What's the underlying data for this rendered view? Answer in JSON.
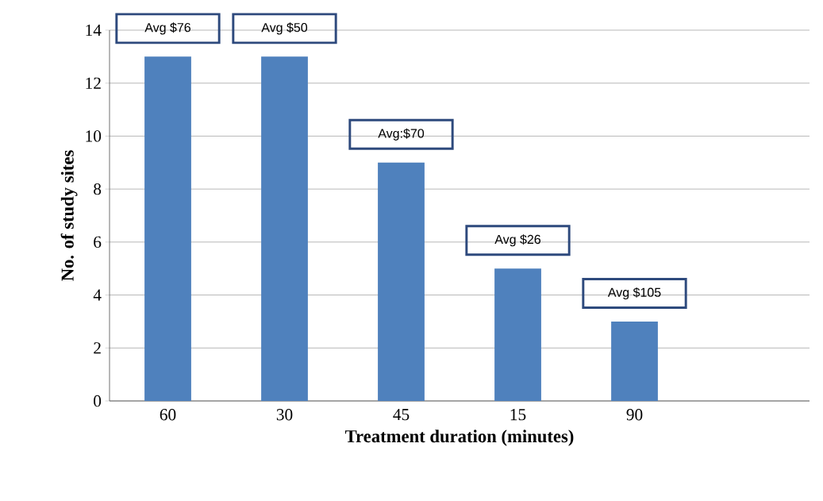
{
  "chart_data": {
    "type": "bar",
    "xlabel": "Treatment duration  (minutes)",
    "ylabel": "No. of study sites",
    "categories": [
      "60",
      "30",
      "45",
      "15",
      "90",
      null
    ],
    "values": [
      13,
      13,
      9,
      5,
      3,
      null
    ],
    "color": "#4f81bd",
    "ylim": [
      0,
      14
    ],
    "yticks": [
      0,
      2,
      4,
      6,
      8,
      10,
      12,
      14
    ],
    "grid": "y",
    "annotations": [
      {
        "text": "Avg $76",
        "x": "60",
        "y": 13
      },
      {
        "text": "Avg $50",
        "x": "30",
        "y": 13
      },
      {
        "text": "Avg:$70",
        "x": "45",
        "y": 9
      },
      {
        "text": "Avg $26",
        "x": "15",
        "y": 5
      },
      {
        "text": "Avg $105",
        "x": "90",
        "y": 3
      }
    ]
  }
}
